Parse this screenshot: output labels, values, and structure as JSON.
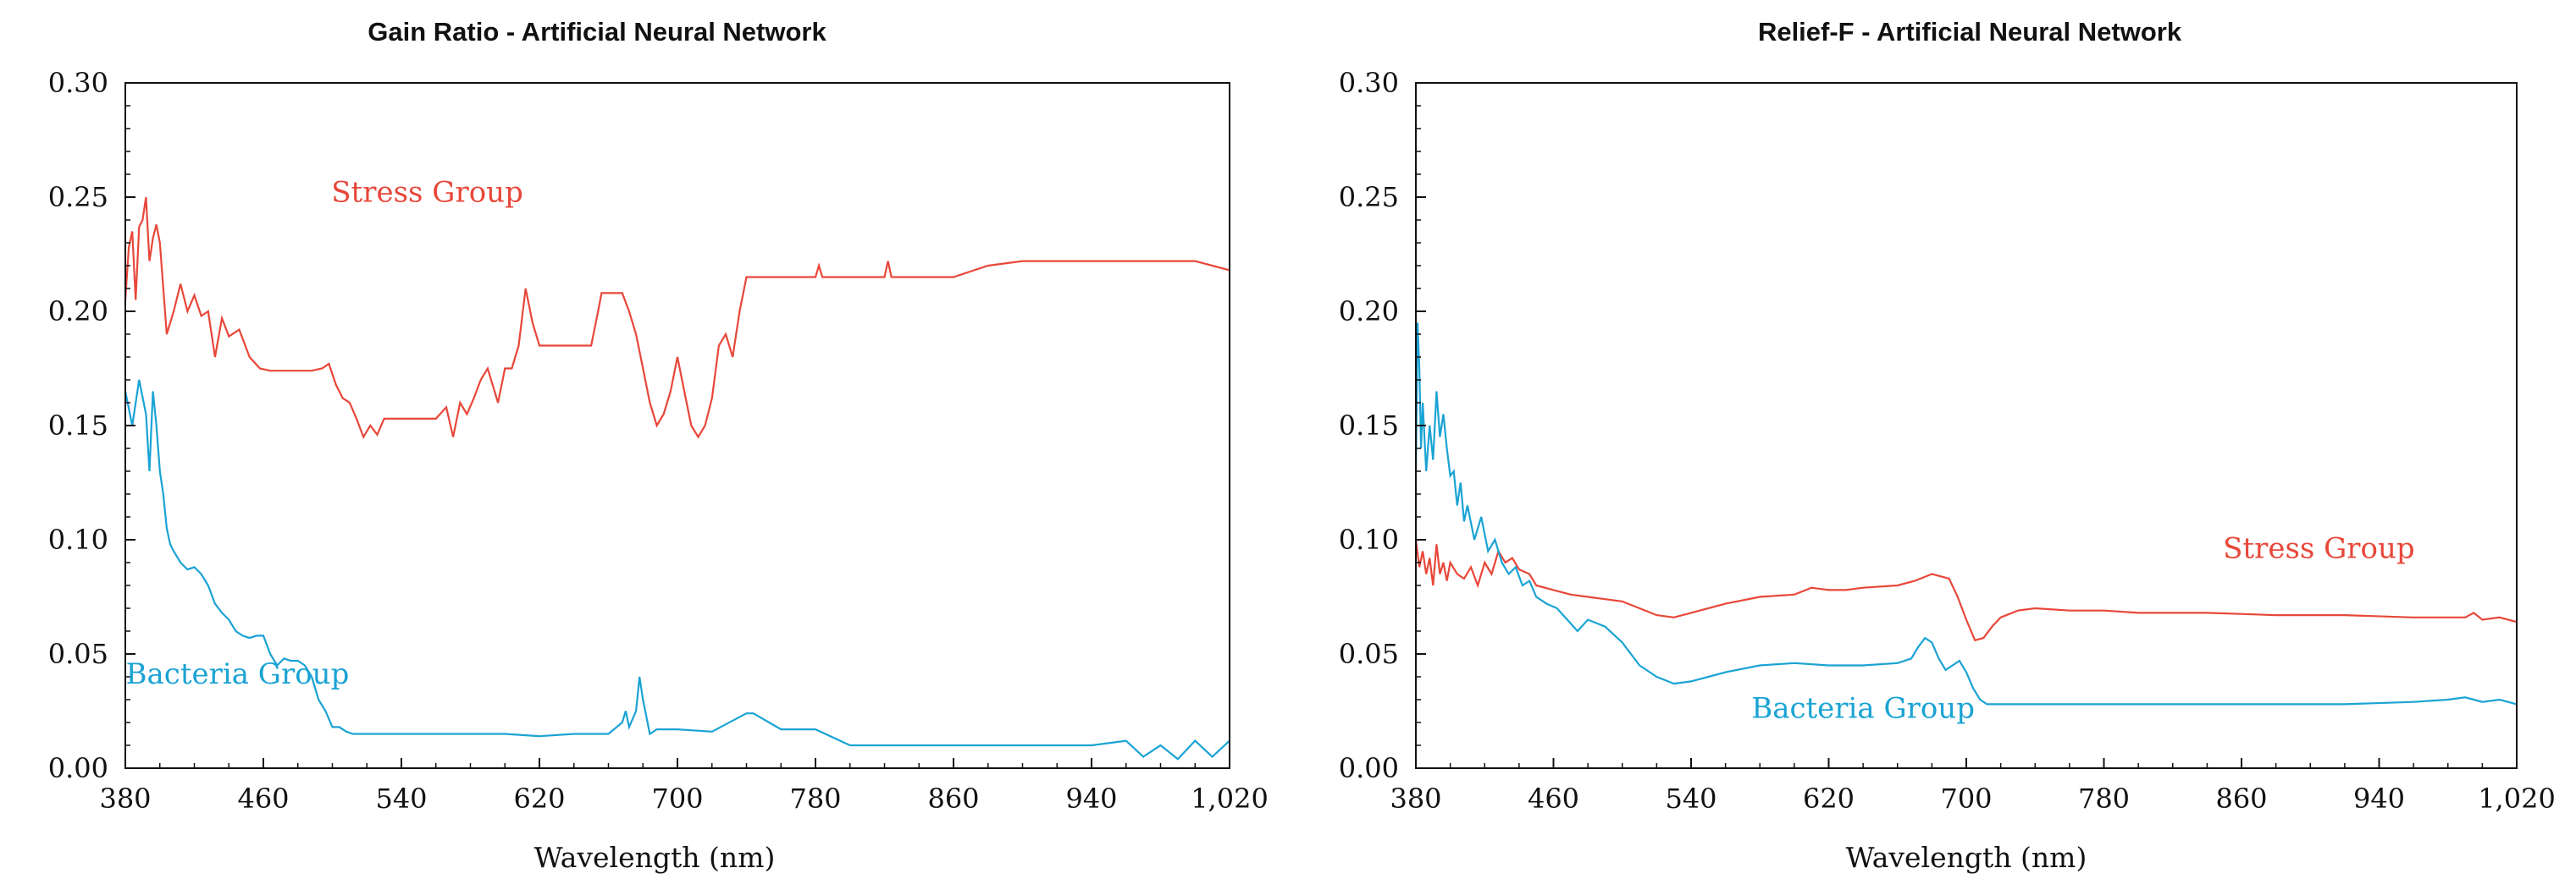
{
  "colors": {
    "stress": "#e8473a",
    "bacteria": "#1aa3d4",
    "axis": "#111111"
  },
  "chart_data": [
    {
      "type": "line",
      "title": "Gain Ratio - Artificial Neural Network",
      "xlabel": "Wavelength (nm)",
      "ylabel": "",
      "xlim": [
        380,
        1020
      ],
      "ylim": [
        0,
        0.3
      ],
      "xticks": [
        380,
        460,
        540,
        620,
        700,
        780,
        860,
        940,
        1020
      ],
      "xtick_labels": [
        "380",
        "460",
        "540",
        "620",
        "700",
        "780",
        "860",
        "940",
        "1,020"
      ],
      "yticks": [
        0,
        0.05,
        0.1,
        0.15,
        0.2,
        0.25,
        0.3
      ],
      "ytick_labels": [
        "0.00",
        "0.05",
        "0.10",
        "0.15",
        "0.20",
        "0.25",
        "0.30"
      ],
      "grid": false,
      "annotations": [
        {
          "text": "Stress Group",
          "x": 555,
          "y": 0.248,
          "series": "Stress Group"
        },
        {
          "text": "Bacteria Group",
          "x": 445,
          "y": 0.037,
          "series": "Bacteria Group"
        }
      ],
      "series": [
        {
          "name": "Stress Group",
          "x": [
            380,
            382,
            384,
            386,
            388,
            390,
            392,
            394,
            396,
            398,
            400,
            404,
            408,
            412,
            416,
            420,
            424,
            428,
            432,
            436,
            440,
            446,
            452,
            458,
            464,
            470,
            476,
            482,
            488,
            494,
            498,
            502,
            506,
            510,
            514,
            518,
            522,
            526,
            530,
            540,
            550,
            560,
            566,
            570,
            574,
            578,
            582,
            586,
            590,
            596,
            600,
            604,
            608,
            612,
            616,
            620,
            624,
            630,
            640,
            650,
            654,
            656,
            660,
            664,
            668,
            672,
            676,
            680,
            684,
            688,
            692,
            696,
            700,
            704,
            708,
            712,
            716,
            720,
            724,
            728,
            732,
            736,
            740,
            760,
            780,
            782,
            784,
            800,
            820,
            822,
            824,
            830,
            840,
            860,
            880,
            900,
            920,
            940,
            960,
            980,
            1000,
            1010,
            1020
          ],
          "y": [
            0.205,
            0.228,
            0.235,
            0.205,
            0.237,
            0.24,
            0.25,
            0.222,
            0.232,
            0.238,
            0.23,
            0.19,
            0.2,
            0.212,
            0.2,
            0.207,
            0.198,
            0.2,
            0.18,
            0.197,
            0.189,
            0.192,
            0.18,
            0.175,
            0.174,
            0.174,
            0.174,
            0.174,
            0.174,
            0.175,
            0.177,
            0.168,
            0.162,
            0.16,
            0.153,
            0.145,
            0.15,
            0.146,
            0.153,
            0.153,
            0.153,
            0.153,
            0.158,
            0.145,
            0.16,
            0.155,
            0.162,
            0.17,
            0.175,
            0.16,
            0.175,
            0.175,
            0.185,
            0.21,
            0.195,
            0.185,
            0.185,
            0.185,
            0.185,
            0.185,
            0.2,
            0.208,
            0.208,
            0.208,
            0.208,
            0.2,
            0.19,
            0.175,
            0.16,
            0.15,
            0.155,
            0.165,
            0.18,
            0.165,
            0.15,
            0.145,
            0.15,
            0.162,
            0.185,
            0.19,
            0.18,
            0.2,
            0.215,
            0.215,
            0.215,
            0.22,
            0.215,
            0.215,
            0.215,
            0.222,
            0.215,
            0.215,
            0.215,
            0.215,
            0.22,
            0.222,
            0.222,
            0.222,
            0.222,
            0.222,
            0.222,
            0.22,
            0.218
          ]
        },
        {
          "name": "Bacteria Group",
          "x": [
            380,
            384,
            388,
            392,
            394,
            396,
            398,
            400,
            402,
            404,
            406,
            408,
            412,
            416,
            420,
            424,
            428,
            432,
            436,
            440,
            444,
            448,
            452,
            456,
            460,
            464,
            468,
            472,
            476,
            480,
            484,
            488,
            492,
            496,
            500,
            504,
            508,
            512,
            520,
            540,
            560,
            580,
            600,
            620,
            640,
            660,
            668,
            670,
            672,
            676,
            678,
            680,
            684,
            688,
            700,
            720,
            740,
            744,
            760,
            780,
            800,
            820,
            860,
            900,
            940,
            960,
            970,
            980,
            990,
            1000,
            1010,
            1020
          ],
          "y": [
            0.165,
            0.15,
            0.17,
            0.155,
            0.13,
            0.165,
            0.15,
            0.13,
            0.12,
            0.105,
            0.098,
            0.095,
            0.09,
            0.087,
            0.088,
            0.085,
            0.08,
            0.072,
            0.068,
            0.065,
            0.06,
            0.058,
            0.057,
            0.058,
            0.058,
            0.05,
            0.045,
            0.048,
            0.047,
            0.047,
            0.045,
            0.04,
            0.03,
            0.025,
            0.018,
            0.018,
            0.016,
            0.015,
            0.015,
            0.015,
            0.015,
            0.015,
            0.015,
            0.014,
            0.015,
            0.015,
            0.02,
            0.025,
            0.018,
            0.025,
            0.04,
            0.03,
            0.015,
            0.017,
            0.017,
            0.016,
            0.024,
            0.024,
            0.017,
            0.017,
            0.01,
            0.01,
            0.01,
            0.01,
            0.01,
            0.012,
            0.005,
            0.01,
            0.004,
            0.012,
            0.005,
            0.012
          ]
        }
      ]
    },
    {
      "type": "line",
      "title": "Relief-F - Artificial Neural Network",
      "xlabel": "Wavelength (nm)",
      "ylabel": "",
      "xlim": [
        380,
        1020
      ],
      "ylim": [
        0,
        0.3
      ],
      "xticks": [
        380,
        460,
        540,
        620,
        700,
        780,
        860,
        940,
        1020
      ],
      "xtick_labels": [
        "380",
        "460",
        "540",
        "620",
        "700",
        "780",
        "860",
        "940",
        "1,020"
      ],
      "yticks": [
        0,
        0.05,
        0.1,
        0.15,
        0.2,
        0.25,
        0.3
      ],
      "ytick_labels": [
        "0.00",
        "0.05",
        "0.10",
        "0.15",
        "0.20",
        "0.25",
        "0.30"
      ],
      "grid": false,
      "annotations": [
        {
          "text": "Stress Group",
          "x": 905,
          "y": 0.092,
          "series": "Stress Group"
        },
        {
          "text": "Bacteria Group",
          "x": 640,
          "y": 0.022,
          "series": "Bacteria Group"
        }
      ],
      "series": [
        {
          "name": "Stress Group",
          "x": [
            380,
            382,
            384,
            386,
            388,
            390,
            392,
            394,
            396,
            398,
            400,
            404,
            408,
            412,
            416,
            420,
            424,
            428,
            432,
            436,
            440,
            446,
            450,
            460,
            470,
            480,
            490,
            500,
            510,
            520,
            530,
            540,
            560,
            580,
            600,
            610,
            620,
            630,
            640,
            660,
            670,
            680,
            690,
            695,
            700,
            705,
            710,
            715,
            720,
            730,
            740,
            760,
            780,
            800,
            840,
            880,
            920,
            960,
            990,
            995,
            1000,
            1010,
            1020
          ],
          "y": [
            0.1,
            0.088,
            0.095,
            0.085,
            0.092,
            0.08,
            0.098,
            0.085,
            0.09,
            0.082,
            0.09,
            0.085,
            0.083,
            0.088,
            0.08,
            0.09,
            0.085,
            0.095,
            0.09,
            0.092,
            0.087,
            0.085,
            0.08,
            0.078,
            0.076,
            0.075,
            0.074,
            0.073,
            0.07,
            0.067,
            0.066,
            0.068,
            0.072,
            0.075,
            0.076,
            0.079,
            0.078,
            0.078,
            0.079,
            0.08,
            0.082,
            0.085,
            0.083,
            0.075,
            0.065,
            0.056,
            0.057,
            0.062,
            0.066,
            0.069,
            0.07,
            0.069,
            0.069,
            0.068,
            0.068,
            0.067,
            0.067,
            0.066,
            0.066,
            0.068,
            0.065,
            0.066,
            0.064
          ]
        },
        {
          "name": "Bacteria Group",
          "x": [
            380,
            381,
            382,
            383,
            384,
            386,
            388,
            390,
            392,
            394,
            396,
            398,
            400,
            402,
            404,
            406,
            408,
            410,
            414,
            418,
            422,
            426,
            430,
            434,
            438,
            442,
            446,
            450,
            456,
            462,
            468,
            474,
            480,
            490,
            500,
            510,
            520,
            530,
            540,
            560,
            580,
            600,
            620,
            640,
            660,
            668,
            672,
            676,
            680,
            684,
            688,
            692,
            696,
            700,
            704,
            708,
            712,
            716,
            720,
            730,
            760,
            800,
            840,
            880,
            920,
            960,
            980,
            990,
            1000,
            1010,
            1020
          ],
          "y": [
            0.13,
            0.195,
            0.175,
            0.14,
            0.16,
            0.13,
            0.15,
            0.135,
            0.165,
            0.145,
            0.155,
            0.14,
            0.128,
            0.13,
            0.115,
            0.125,
            0.108,
            0.115,
            0.1,
            0.11,
            0.095,
            0.1,
            0.09,
            0.085,
            0.088,
            0.08,
            0.082,
            0.075,
            0.072,
            0.07,
            0.065,
            0.06,
            0.065,
            0.062,
            0.055,
            0.045,
            0.04,
            0.037,
            0.038,
            0.042,
            0.045,
            0.046,
            0.045,
            0.045,
            0.046,
            0.048,
            0.053,
            0.057,
            0.055,
            0.048,
            0.043,
            0.045,
            0.047,
            0.042,
            0.035,
            0.03,
            0.028,
            0.028,
            0.028,
            0.028,
            0.028,
            0.028,
            0.028,
            0.028,
            0.028,
            0.029,
            0.03,
            0.031,
            0.029,
            0.03,
            0.028
          ]
        }
      ]
    }
  ]
}
